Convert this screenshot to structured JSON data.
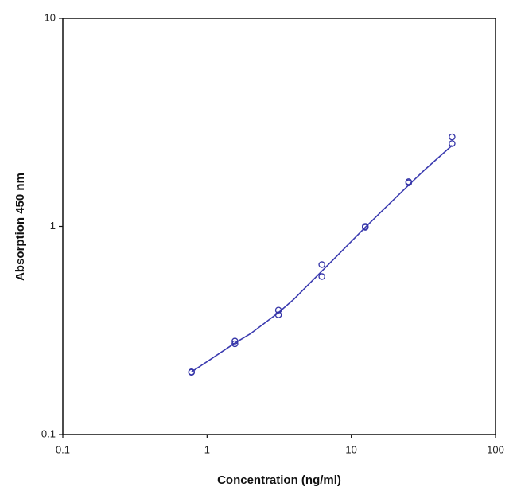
{
  "chart_data": {
    "type": "scatter",
    "xlabel": "Concentration (ng/ml)",
    "ylabel": "Absorption 450 nm",
    "xscale": "log",
    "yscale": "log",
    "xlim": [
      0.1,
      100
    ],
    "ylim": [
      0.1,
      10
    ],
    "xticks": [
      0.1,
      1,
      10,
      100
    ],
    "yticks": [
      0.1,
      1,
      10
    ],
    "series": [
      {
        "type": "scatter",
        "color": "#3535a8",
        "x": [
          0.78,
          0.78,
          1.56,
          1.56,
          3.125,
          3.125,
          6.25,
          6.25,
          12.5,
          12.5,
          25,
          25,
          50,
          50
        ],
        "values": [
          0.2,
          0.199,
          0.281,
          0.273,
          0.396,
          0.376,
          0.655,
          0.574,
          1.0,
          0.99,
          1.64,
          1.62,
          2.69,
          2.5
        ]
      },
      {
        "type": "line",
        "color": "#3b3bb0",
        "x": [
          0.78,
          1,
          1.56,
          2,
          3.125,
          4,
          6.25,
          8,
          12.5,
          16,
          25,
          32,
          50
        ],
        "values": [
          0.2,
          0.224,
          0.275,
          0.305,
          0.385,
          0.447,
          0.61,
          0.724,
          0.99,
          1.17,
          1.58,
          1.86,
          2.45
        ]
      }
    ]
  }
}
